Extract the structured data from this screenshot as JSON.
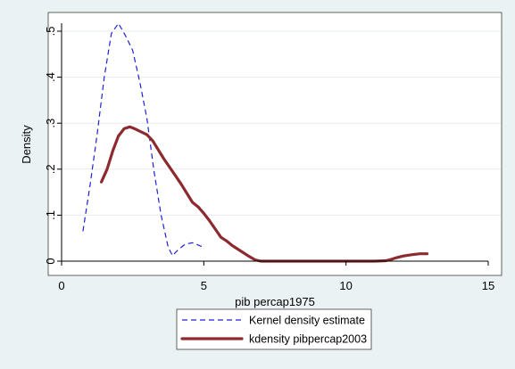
{
  "chart_data": {
    "type": "line",
    "title": "",
    "xlabel": "pib percap1975",
    "ylabel": "Density",
    "xlim": [
      0,
      15
    ],
    "ylim": [
      0,
      0.5
    ],
    "x_ticks": [
      0,
      5,
      10,
      15
    ],
    "x_tick_labels": [
      "0",
      "5",
      "10",
      "15"
    ],
    "y_ticks": [
      0,
      0.1,
      0.2,
      0.3,
      0.4,
      0.5
    ],
    "y_tick_labels": [
      "0",
      ".1",
      ".2",
      ".3",
      ".4",
      ".5"
    ],
    "grid": "horizontal",
    "legend_position": "bottom",
    "series": [
      {
        "name": "Kernel density estimate",
        "color": "#1f22d6",
        "style": "dashed",
        "points": [
          [
            0.75,
            0.065
          ],
          [
            1.0,
            0.165
          ],
          [
            1.25,
            0.275
          ],
          [
            1.5,
            0.4
          ],
          [
            1.75,
            0.495
          ],
          [
            2.0,
            0.517
          ],
          [
            2.25,
            0.49
          ],
          [
            2.5,
            0.458
          ],
          [
            2.75,
            0.39
          ],
          [
            3.0,
            0.31
          ],
          [
            3.25,
            0.195
          ],
          [
            3.5,
            0.1
          ],
          [
            3.75,
            0.03
          ],
          [
            3.9,
            0.012
          ],
          [
            4.1,
            0.025
          ],
          [
            4.35,
            0.037
          ],
          [
            4.6,
            0.04
          ],
          [
            4.8,
            0.035
          ],
          [
            4.95,
            0.031
          ]
        ]
      },
      {
        "name": "kdensity pibpercap2003",
        "color": "#8c2a2f",
        "style": "solid",
        "points": [
          [
            1.4,
            0.172
          ],
          [
            1.6,
            0.2
          ],
          [
            1.8,
            0.24
          ],
          [
            2.0,
            0.272
          ],
          [
            2.2,
            0.288
          ],
          [
            2.4,
            0.292
          ],
          [
            2.6,
            0.287
          ],
          [
            2.8,
            0.281
          ],
          [
            3.0,
            0.275
          ],
          [
            3.2,
            0.262
          ],
          [
            3.4,
            0.242
          ],
          [
            3.6,
            0.222
          ],
          [
            3.8,
            0.204
          ],
          [
            4.0,
            0.186
          ],
          [
            4.2,
            0.168
          ],
          [
            4.4,
            0.148
          ],
          [
            4.6,
            0.128
          ],
          [
            4.8,
            0.118
          ],
          [
            5.0,
            0.104
          ],
          [
            5.2,
            0.088
          ],
          [
            5.4,
            0.07
          ],
          [
            5.6,
            0.052
          ],
          [
            5.8,
            0.044
          ],
          [
            6.0,
            0.034
          ],
          [
            6.2,
            0.026
          ],
          [
            6.4,
            0.018
          ],
          [
            6.6,
            0.01
          ],
          [
            6.8,
            0.003
          ],
          [
            7.0,
            0.0
          ],
          [
            8.0,
            0.0
          ],
          [
            9.0,
            0.0
          ],
          [
            10.0,
            0.0
          ],
          [
            11.0,
            0.0
          ],
          [
            11.4,
            0.001
          ],
          [
            11.6,
            0.004
          ],
          [
            11.8,
            0.008
          ],
          [
            12.0,
            0.011
          ],
          [
            12.3,
            0.014
          ],
          [
            12.6,
            0.016
          ],
          [
            12.85,
            0.016
          ]
        ]
      }
    ]
  }
}
